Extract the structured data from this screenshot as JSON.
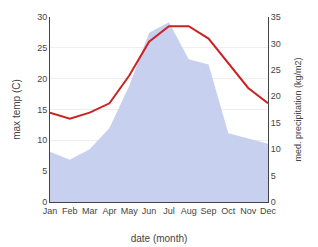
{
  "chart_data": {
    "type": "line",
    "categories": [
      "Jan",
      "Feb",
      "Mar",
      "Apr",
      "May",
      "Jun",
      "Jul",
      "Aug",
      "Sep",
      "Oct",
      "Nov",
      "Dec"
    ],
    "xlabel": "date (month)",
    "ylabel": "max temp (C)",
    "y2label": "med. precipitation (kg/m2)",
    "series": [
      {
        "type": "line",
        "color": "#cc2222",
        "values": [
          14.5,
          13.5,
          14.5,
          16.0,
          20.5,
          26.0,
          28.5,
          28.5,
          26.5,
          22.5,
          18.5,
          16.0
        ]
      },
      {
        "type": "area",
        "axis": "y2",
        "color": "#c8d0f0",
        "values": [
          9.5,
          8.0,
          10.0,
          14.0,
          22.0,
          32.0,
          34.0,
          27.0,
          26.0,
          13.0,
          12.0,
          11.0
        ]
      }
    ],
    "ylim": [
      0,
      30
    ],
    "yticks": [
      0,
      5,
      10,
      15,
      20,
      25,
      30
    ],
    "y2lim": [
      0,
      35
    ],
    "y2ticks": [
      0,
      5,
      10,
      15,
      20,
      25,
      30,
      35
    ],
    "grid": true
  }
}
